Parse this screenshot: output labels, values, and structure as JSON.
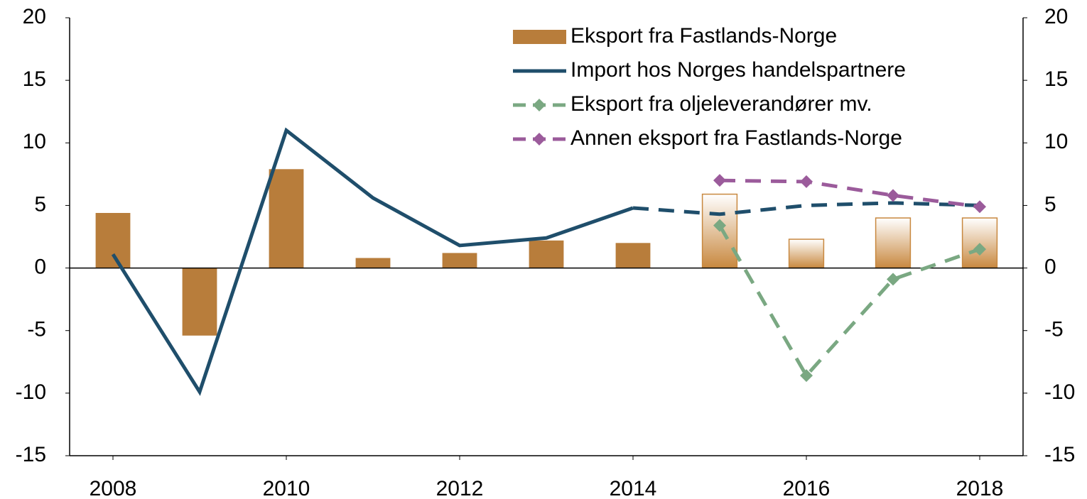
{
  "chart_data": {
    "type": "bar_line",
    "x": [
      2008,
      2009,
      2010,
      2011,
      2012,
      2013,
      2014,
      2015,
      2016,
      2017,
      2018
    ],
    "xlim": [
      2007.5,
      2018.5
    ],
    "xticks": [
      2008,
      2010,
      2012,
      2014,
      2016,
      2018
    ],
    "ylim": [
      -15,
      20
    ],
    "yticks": [
      -15,
      -10,
      -5,
      0,
      5,
      10,
      15,
      20
    ],
    "y2lim": [
      -15,
      20
    ],
    "y2ticks": [
      -15,
      -10,
      -5,
      0,
      5,
      10,
      15,
      20
    ],
    "projected_from": 2015,
    "legend": "top-right",
    "series": [
      {
        "name": "Eksport fra Fastlands-Norge",
        "kind": "bar",
        "color": "#b87d3b",
        "values": [
          4.4,
          -5.4,
          7.9,
          0.8,
          1.2,
          2.2,
          2.0,
          5.9,
          2.3,
          4.0,
          4.0
        ]
      },
      {
        "name": "Import hos Norges handelspartnere",
        "kind": "line",
        "color": "#1f4e6b",
        "values": [
          1.1,
          -9.9,
          11.0,
          5.6,
          1.8,
          2.4,
          4.8,
          4.3,
          5.0,
          5.2,
          5.0
        ]
      },
      {
        "name": "Eksport fra oljeleverandører mv.",
        "kind": "line",
        "marker": "diamond",
        "dashed": true,
        "color": "#7aa882",
        "values": [
          null,
          null,
          null,
          null,
          null,
          null,
          null,
          3.4,
          -8.6,
          -0.9,
          1.5
        ]
      },
      {
        "name": "Annen eksport fra Fastlands-Norge",
        "kind": "line",
        "marker": "diamond",
        "dashed": true,
        "color": "#9b5b9b",
        "values": [
          null,
          null,
          null,
          null,
          null,
          null,
          null,
          7.0,
          6.9,
          5.8,
          4.9
        ]
      }
    ]
  }
}
